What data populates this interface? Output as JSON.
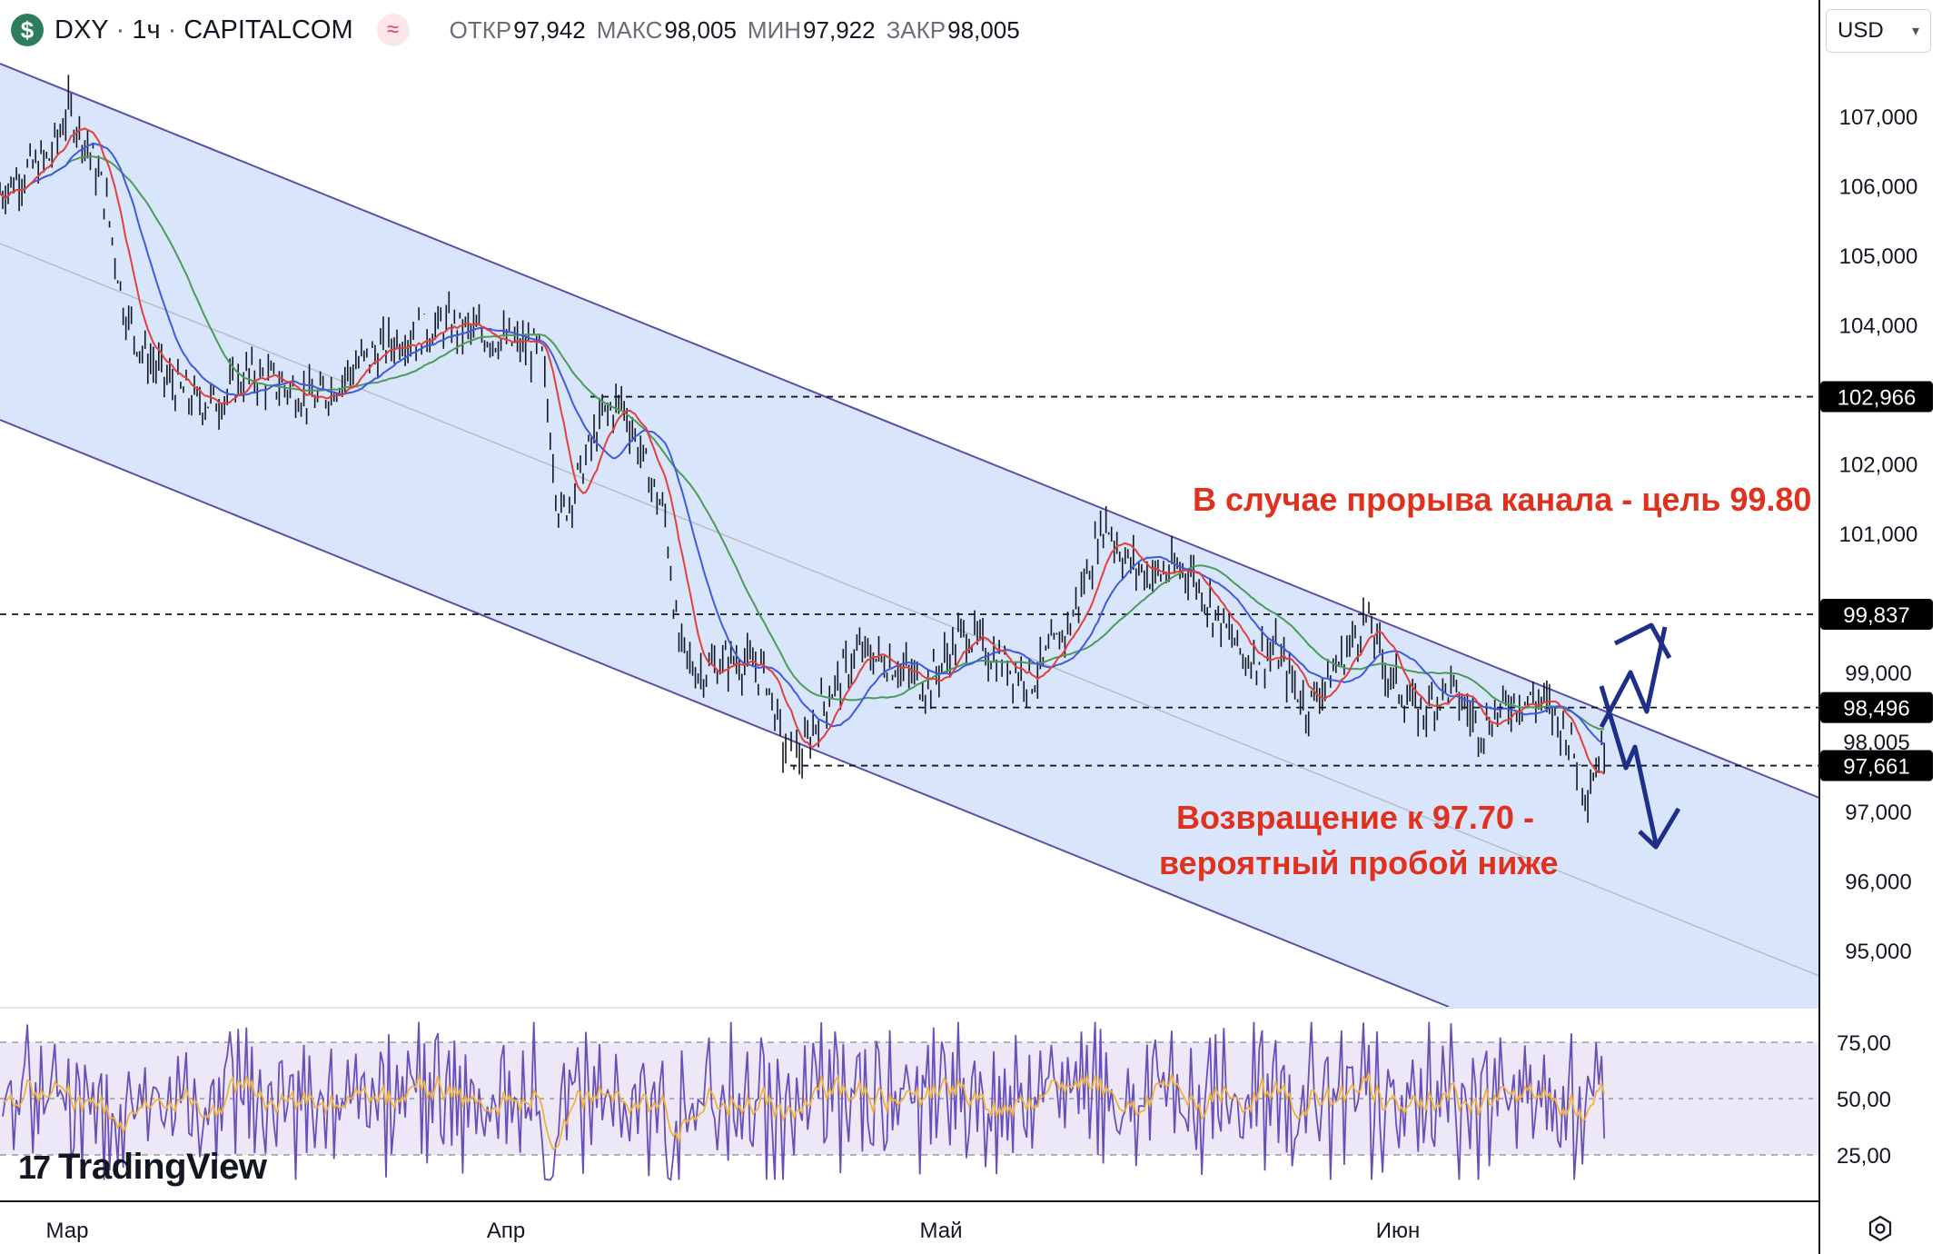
{
  "header": {
    "symbol": "DXY",
    "timeframe": "1ч",
    "source": "CAPITALCOM",
    "separator": "·",
    "ohlc": [
      {
        "label": "ОТКР",
        "value": "97,942"
      },
      {
        "label": "МАКС",
        "value": "98,005"
      },
      {
        "label": "МИН",
        "value": "97,922"
      },
      {
        "label": "ЗАКР",
        "value": "98,005"
      }
    ]
  },
  "currency_selector": {
    "value": "USD"
  },
  "brand": {
    "logo_text": "TradingView",
    "mark": "17"
  },
  "icons": {
    "symbol": "dollar-icon",
    "indicator": "wave-icon",
    "dropdown": "chevron-down-icon",
    "settings": "gear-icon"
  },
  "colors": {
    "channel_fill": "#d8e5fa",
    "channel_line": "#5b4fa8",
    "ma_fast": "#e0413a",
    "ma_mid": "#3f5ae0",
    "ma_slow": "#4d9a59",
    "rsi_line": "#6a4fb8",
    "rsi_signal": "#f0b23c",
    "rsi_band": "#ece8f7",
    "annotation": "#e0301e",
    "arrows": "#1e2f8a",
    "price_label_bg": "#000000"
  },
  "annotations": {
    "upper": "В случае прорыва канала - цель 99.80",
    "lower_line1": "Возвращение к 97.70 -",
    "lower_line2": "вероятный пробой ниже"
  },
  "chart_data": [
    {
      "type": "candlestick",
      "title": "DXY · 1ч · CAPITALCOM",
      "x_axis": {
        "labels": [
          "Мар",
          "Апр",
          "Май",
          "Июн"
        ]
      },
      "y_axis": {
        "range": [
          94.5,
          107.6
        ],
        "tick_labels": [
          "107,000",
          "106,000",
          "105,000",
          "104,000",
          "102,000",
          "101,000",
          "99,000",
          "97,000",
          "96,000",
          "95,000"
        ],
        "tick_values": [
          107,
          106,
          105,
          104,
          102,
          101,
          99,
          97,
          96,
          95
        ]
      },
      "horizontal_levels": [
        {
          "value": 102.966,
          "label": "102,966"
        },
        {
          "value": 99.837,
          "label": "99,837"
        },
        {
          "value": 98.496,
          "label": "98,496"
        },
        {
          "value": 97.661,
          "label": "97,661"
        }
      ],
      "last_price": {
        "value": 98.005,
        "label": "98,005"
      },
      "series_path": [
        {
          "x": 0,
          "y": 105.9
        },
        {
          "x": 20,
          "y": 106.2
        },
        {
          "x": 40,
          "y": 106.4
        },
        {
          "x": 55,
          "y": 107.1
        },
        {
          "x": 70,
          "y": 106.6
        },
        {
          "x": 85,
          "y": 105.8
        },
        {
          "x": 100,
          "y": 104.2
        },
        {
          "x": 115,
          "y": 103.6
        },
        {
          "x": 135,
          "y": 103.2
        },
        {
          "x": 155,
          "y": 102.9
        },
        {
          "x": 175,
          "y": 102.9
        },
        {
          "x": 200,
          "y": 103.3
        },
        {
          "x": 230,
          "y": 103.1
        },
        {
          "x": 255,
          "y": 102.9
        },
        {
          "x": 285,
          "y": 103.4
        },
        {
          "x": 320,
          "y": 103.8
        },
        {
          "x": 360,
          "y": 104.0
        },
        {
          "x": 400,
          "y": 103.8
        },
        {
          "x": 435,
          "y": 103.6
        },
        {
          "x": 450,
          "y": 101.2
        },
        {
          "x": 465,
          "y": 101.8
        },
        {
          "x": 485,
          "y": 102.7
        },
        {
          "x": 500,
          "y": 102.9
        },
        {
          "x": 520,
          "y": 101.9
        },
        {
          "x": 535,
          "y": 101.2
        },
        {
          "x": 545,
          "y": 99.4
        },
        {
          "x": 560,
          "y": 99.0
        },
        {
          "x": 590,
          "y": 99.2
        },
        {
          "x": 615,
          "y": 99.0
        },
        {
          "x": 630,
          "y": 97.9
        },
        {
          "x": 645,
          "y": 97.8
        },
        {
          "x": 660,
          "y": 98.5
        },
        {
          "x": 690,
          "y": 99.3
        },
        {
          "x": 720,
          "y": 99.1
        },
        {
          "x": 745,
          "y": 98.8
        },
        {
          "x": 775,
          "y": 99.6
        },
        {
          "x": 800,
          "y": 99.2
        },
        {
          "x": 830,
          "y": 98.9
        },
        {
          "x": 860,
          "y": 99.7
        },
        {
          "x": 875,
          "y": 100.5
        },
        {
          "x": 888,
          "y": 101.2
        },
        {
          "x": 905,
          "y": 100.6
        },
        {
          "x": 925,
          "y": 100.4
        },
        {
          "x": 955,
          "y": 100.5
        },
        {
          "x": 975,
          "y": 99.9
        },
        {
          "x": 1000,
          "y": 99.2
        },
        {
          "x": 1025,
          "y": 99.3
        },
        {
          "x": 1050,
          "y": 98.5
        },
        {
          "x": 1075,
          "y": 99.1
        },
        {
          "x": 1098,
          "y": 99.8
        },
        {
          "x": 1115,
          "y": 99.0
        },
        {
          "x": 1140,
          "y": 98.4
        },
        {
          "x": 1165,
          "y": 98.8
        },
        {
          "x": 1190,
          "y": 98.2
        },
        {
          "x": 1215,
          "y": 98.6
        },
        {
          "x": 1240,
          "y": 98.6
        },
        {
          "x": 1260,
          "y": 98.1
        },
        {
          "x": 1275,
          "y": 97.3
        },
        {
          "x": 1290,
          "y": 98.0
        }
      ],
      "moving_averages": [
        "red",
        "blue",
        "green"
      ],
      "channel": {
        "upper": [
          {
            "x": 0,
            "y": 106.8
          },
          {
            "x": 1470,
            "y": 97.0
          }
        ],
        "lower": [
          {
            "x": 0,
            "y": 103.0
          },
          {
            "x": 1470,
            "y": 93.2
          }
        ],
        "mid": [
          {
            "x": 0,
            "y": 104.9
          },
          {
            "x": 1470,
            "y": 95.1
          }
        ]
      },
      "scenarios": [
        {
          "from": 97.9,
          "to": 98.6,
          "target": 99.8
        },
        {
          "from": 98.6,
          "to": 97.9,
          "target": 96.7
        }
      ]
    },
    {
      "type": "line",
      "title": "RSI",
      "y_axis": {
        "range": [
          10,
          90
        ],
        "tick_labels": [
          "75,00",
          "50,00",
          "25,00"
        ],
        "tick_values": [
          75,
          50,
          25
        ]
      },
      "band": [
        30,
        70
      ],
      "midline": 50
    }
  ]
}
